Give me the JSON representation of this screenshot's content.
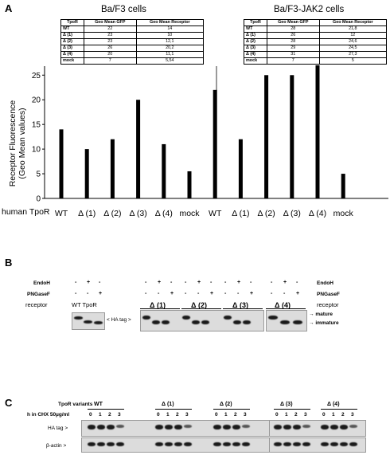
{
  "panel_a": {
    "letter": "A",
    "left_title": "Ba/F3 cells",
    "right_title": "Ba/F3-JAK2 cells",
    "table_headers": [
      "TpoR",
      "Geo Mean GFP",
      "Geo Mean Receptor"
    ],
    "left_table": [
      [
        "WT",
        "22",
        "14"
      ],
      [
        "Δ (1)",
        "23",
        "10"
      ],
      [
        "Δ (2)",
        "23",
        "12,1"
      ],
      [
        "Δ (3)",
        "26",
        "20,2"
      ],
      [
        "Δ (4)",
        "20",
        "11,1"
      ],
      [
        "mock",
        "7",
        "5,54"
      ]
    ],
    "right_table": [
      [
        "WT",
        "28",
        "21,8"
      ],
      [
        "Δ (1)",
        "26",
        "12"
      ],
      [
        "Δ (2)",
        "28",
        "24,6"
      ],
      [
        "Δ (3)",
        "29",
        "24,5"
      ],
      [
        "Δ (4)",
        "31",
        "27,3"
      ],
      [
        "mock",
        "7",
        "5"
      ]
    ],
    "ylabel_line1": "Receptor Fluorescence",
    "ylabel_line2": "(Geo Mean values)",
    "row_label": "human TpoR"
  },
  "chart_data": {
    "type": "bar",
    "categories": [
      "WT",
      "Δ (1)",
      "Δ (2)",
      "Δ (3)",
      "Δ (4)",
      "mock",
      "WT",
      "Δ (1)",
      "Δ (2)",
      "Δ (3)",
      "Δ (4)",
      "mock"
    ],
    "groups": [
      "Ba/F3 cells",
      "Ba/F3-JAK2 cells"
    ],
    "series": [
      {
        "values": [
          14,
          10,
          12,
          20,
          11,
          5.5,
          22,
          12,
          25,
          25,
          27,
          5
        ]
      }
    ],
    "ylim": [
      0,
      26.5
    ],
    "yticks": [
      0,
      5,
      10,
      15,
      20,
      25
    ],
    "ylabel": "Receptor Fluorescence (Geo Mean values)",
    "xlabel": "human TpoR",
    "grid": false
  },
  "panel_b": {
    "letter": "B",
    "endoh": "EndoH",
    "pngasef": "PNGaseF",
    "receptor": "receptor",
    "wt_tpor": "WT TpoR",
    "ha_tag": "< HA tag >",
    "mature": "mature",
    "immature": "immature",
    "left_signs": {
      "endoh": [
        "-",
        "+",
        "-"
      ],
      "pngasef": [
        "-",
        "-",
        "+"
      ]
    },
    "right_signs": {
      "endoh": [
        "-",
        "+",
        "-",
        "-",
        "+",
        "-",
        "-",
        "+",
        "-",
        "-",
        "+",
        "-"
      ],
      "pngasef": [
        "-",
        "-",
        "+",
        "-",
        "-",
        "+",
        "-",
        "-",
        "+",
        "-",
        "-",
        "+"
      ]
    },
    "variants": [
      "Δ (1)",
      "Δ (2)",
      "Δ (3)",
      "Δ (4)"
    ]
  },
  "panel_c": {
    "letter": "C",
    "variants_label": "TpoR variants",
    "time_label": "h in CHX 50µg/ml",
    "variants": [
      "WT",
      "Δ (1)",
      "Δ (2)",
      "Δ (3)",
      "Δ (4)"
    ],
    "times": [
      "0",
      "1",
      "2",
      "3"
    ],
    "ha_tag": "HA tag >",
    "actin": "β-actin >"
  }
}
